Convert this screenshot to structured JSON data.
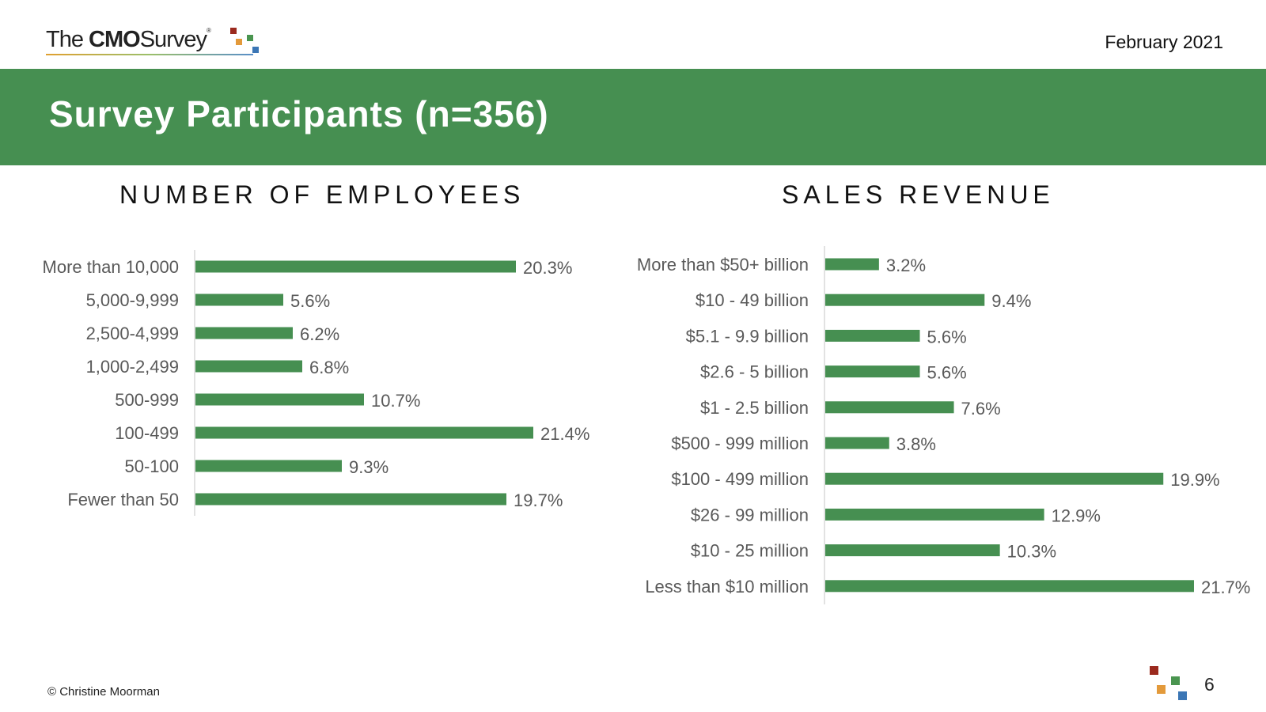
{
  "header": {
    "logo_the": "The",
    "logo_cmo": "CMO",
    "logo_survey": "Survey",
    "logo_reg": "®",
    "date": "February 2021"
  },
  "banner": {
    "title": "Survey Participants (n=356)"
  },
  "footer": {
    "copyright": "© Christine Moorman",
    "page_number": "6"
  },
  "colors": {
    "accent": "#468f51",
    "bar": "#468f51",
    "label": "#595959",
    "axis": "#d9d9d9"
  },
  "chart_data": [
    {
      "type": "bar",
      "orientation": "horizontal",
      "title": "NUMBER OF EMPLOYEES",
      "categories": [
        "More than 10,000",
        "5,000-9,999",
        "2,500-4,999",
        "1,000-2,499",
        "500-999",
        "100-499",
        "50-100",
        "Fewer than 50"
      ],
      "values": [
        20.3,
        5.6,
        6.2,
        6.8,
        10.7,
        21.4,
        9.3,
        19.7
      ],
      "value_labels": [
        "20.3%",
        "5.6%",
        "6.2%",
        "6.8%",
        "10.7%",
        "21.4%",
        "9.3%",
        "19.7%"
      ],
      "unit": "%",
      "xlim": [
        0,
        25
      ],
      "grid": false
    },
    {
      "type": "bar",
      "orientation": "horizontal",
      "title": "SALES REVENUE",
      "categories": [
        "More than $50+ billion",
        "$10 - 49 billion",
        "$5.1 - 9.9 billion",
        "$2.6 - 5 billion",
        "$1 - 2.5 billion",
        "$500 - 999 million",
        "$100 - 499 million",
        "$26 - 99 million",
        "$10 - 25 million",
        "Less than $10 million"
      ],
      "values": [
        3.2,
        9.4,
        5.6,
        5.6,
        7.6,
        3.8,
        19.9,
        12.9,
        10.3,
        21.7
      ],
      "value_labels": [
        "3.2%",
        "9.4%",
        "5.6%",
        "5.6%",
        "7.6%",
        "3.8%",
        "19.9%",
        "12.9%",
        "10.3%",
        "21.7%"
      ],
      "unit": "%",
      "xlim": [
        0,
        25
      ],
      "grid": false
    }
  ]
}
